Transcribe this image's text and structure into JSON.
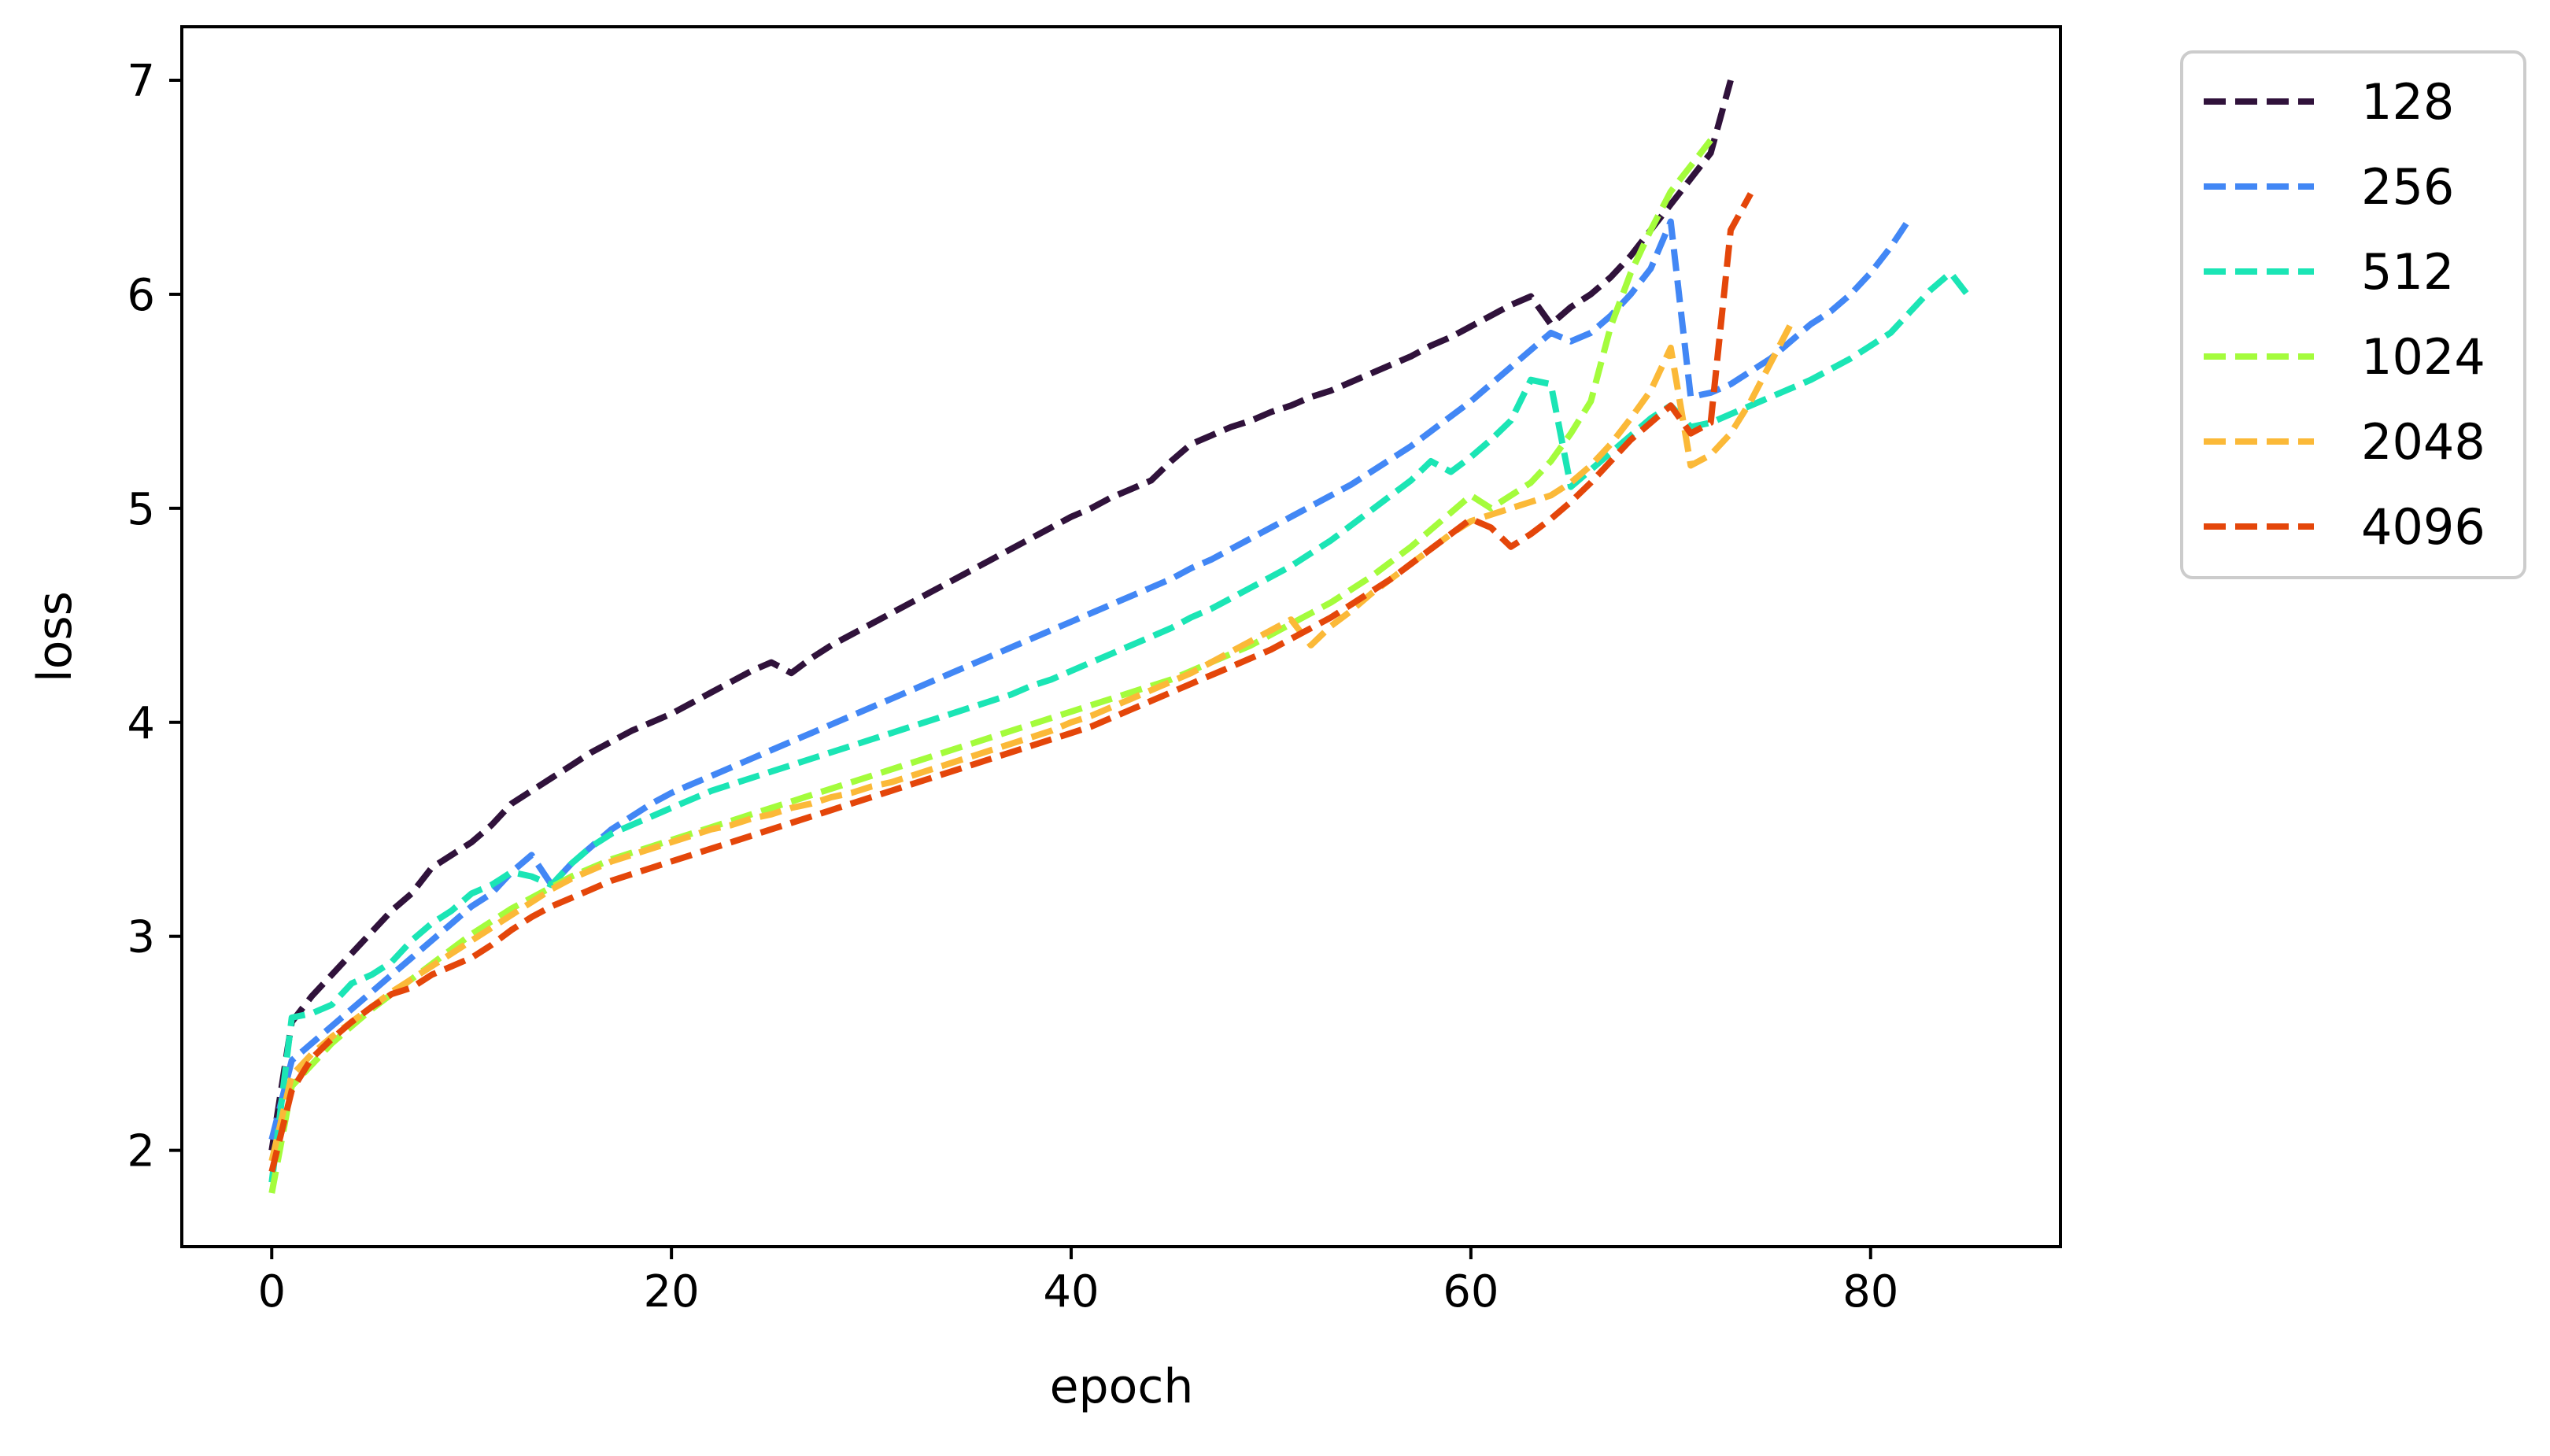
{
  "chart_data": {
    "type": "line",
    "title": "",
    "xlabel": "epoch",
    "ylabel": "loss",
    "xlim": [
      -4.5,
      89.5
    ],
    "ylim": [
      1.55,
      7.25
    ],
    "xticks": [
      0,
      20,
      40,
      60,
      80
    ],
    "yticks": [
      2,
      3,
      4,
      5,
      6,
      7
    ],
    "grid": false,
    "legend": "outside-right-top",
    "line_style": "dashed",
    "series": [
      {
        "name": "128",
        "color": "#30123b",
        "x": [
          0,
          1,
          2,
          3,
          4,
          5,
          6,
          7,
          8,
          9,
          10,
          11,
          12,
          13,
          14,
          15,
          16,
          17,
          18,
          19,
          20,
          21,
          22,
          23,
          24,
          25,
          26,
          27,
          28,
          29,
          30,
          31,
          32,
          33,
          34,
          35,
          36,
          37,
          38,
          39,
          40,
          41,
          42,
          43,
          44,
          45,
          46,
          47,
          48,
          49,
          50,
          51,
          52,
          53,
          54,
          55,
          56,
          57,
          58,
          59,
          60,
          61,
          62,
          63,
          64,
          65,
          66,
          67,
          68,
          69,
          70,
          71,
          72,
          73
        ],
        "y": [
          2.0,
          2.6,
          2.72,
          2.82,
          2.92,
          3.02,
          3.12,
          3.2,
          3.32,
          3.38,
          3.44,
          3.52,
          3.62,
          3.68,
          3.74,
          3.8,
          3.86,
          3.91,
          3.96,
          4.0,
          4.04,
          4.09,
          4.14,
          4.19,
          4.24,
          4.28,
          4.23,
          4.3,
          4.36,
          4.41,
          4.46,
          4.51,
          4.56,
          4.61,
          4.66,
          4.71,
          4.76,
          4.81,
          4.86,
          4.91,
          4.96,
          5.0,
          5.05,
          5.09,
          5.13,
          5.22,
          5.3,
          5.34,
          5.38,
          5.41,
          5.45,
          5.48,
          5.52,
          5.55,
          5.59,
          5.63,
          5.67,
          5.71,
          5.76,
          5.8,
          5.85,
          5.9,
          5.95,
          5.99,
          5.86,
          5.94,
          6.0,
          6.08,
          6.18,
          6.3,
          6.42,
          6.54,
          6.66,
          7.0
        ]
      },
      {
        "name": "256",
        "color": "#4287f5",
        "x": [
          0,
          1,
          2,
          3,
          4,
          5,
          6,
          7,
          8,
          9,
          10,
          11,
          12,
          13,
          14,
          15,
          16,
          17,
          18,
          19,
          20,
          21,
          22,
          23,
          24,
          25,
          26,
          27,
          28,
          29,
          30,
          31,
          32,
          33,
          34,
          35,
          36,
          37,
          38,
          39,
          40,
          41,
          42,
          43,
          44,
          45,
          46,
          47,
          48,
          49,
          50,
          51,
          52,
          53,
          54,
          55,
          56,
          57,
          58,
          59,
          60,
          61,
          62,
          63,
          64,
          65,
          66,
          67,
          68,
          69,
          70,
          71,
          72,
          73,
          74,
          75,
          76,
          77,
          78,
          79,
          80,
          81,
          82
        ],
        "y": [
          2.05,
          2.42,
          2.5,
          2.58,
          2.66,
          2.74,
          2.82,
          2.9,
          2.98,
          3.06,
          3.14,
          3.2,
          3.3,
          3.38,
          3.24,
          3.34,
          3.42,
          3.5,
          3.56,
          3.62,
          3.67,
          3.71,
          3.75,
          3.79,
          3.83,
          3.87,
          3.91,
          3.95,
          3.99,
          4.03,
          4.07,
          4.11,
          4.15,
          4.19,
          4.23,
          4.27,
          4.31,
          4.35,
          4.39,
          4.43,
          4.47,
          4.51,
          4.55,
          4.59,
          4.63,
          4.67,
          4.72,
          4.76,
          4.81,
          4.86,
          4.91,
          4.96,
          5.01,
          5.06,
          5.11,
          5.17,
          5.23,
          5.29,
          5.36,
          5.43,
          5.5,
          5.58,
          5.66,
          5.74,
          5.82,
          5.78,
          5.82,
          5.9,
          6.0,
          6.12,
          6.34,
          5.52,
          5.54,
          5.58,
          5.64,
          5.7,
          5.78,
          5.86,
          5.92,
          6.0,
          6.1,
          6.22,
          6.36
        ]
      },
      {
        "name": "512",
        "color": "#1be5b5",
        "x": [
          0,
          1,
          2,
          3,
          4,
          5,
          6,
          7,
          8,
          9,
          10,
          11,
          12,
          13,
          14,
          15,
          16,
          17,
          18,
          19,
          20,
          21,
          22,
          23,
          24,
          25,
          26,
          27,
          28,
          29,
          30,
          31,
          32,
          33,
          34,
          35,
          36,
          37,
          38,
          39,
          40,
          41,
          42,
          43,
          44,
          45,
          46,
          47,
          48,
          49,
          50,
          51,
          52,
          53,
          54,
          55,
          56,
          57,
          58,
          59,
          60,
          61,
          62,
          63,
          64,
          65,
          66,
          67,
          68,
          69,
          70,
          71,
          72,
          73,
          74,
          75,
          76,
          77,
          78,
          79,
          80,
          81,
          82,
          83,
          84,
          85
        ],
        "y": [
          1.85,
          2.62,
          2.64,
          2.68,
          2.78,
          2.82,
          2.88,
          2.98,
          3.06,
          3.12,
          3.2,
          3.24,
          3.3,
          3.28,
          3.24,
          3.34,
          3.42,
          3.48,
          3.52,
          3.56,
          3.6,
          3.64,
          3.68,
          3.71,
          3.74,
          3.77,
          3.8,
          3.83,
          3.86,
          3.89,
          3.92,
          3.95,
          3.98,
          4.01,
          4.04,
          4.07,
          4.1,
          4.13,
          4.17,
          4.2,
          4.24,
          4.28,
          4.32,
          4.36,
          4.4,
          4.44,
          4.49,
          4.53,
          4.58,
          4.63,
          4.68,
          4.73,
          4.79,
          4.85,
          4.92,
          4.99,
          5.06,
          5.13,
          5.22,
          5.17,
          5.24,
          5.32,
          5.41,
          5.6,
          5.58,
          5.1,
          5.18,
          5.26,
          5.34,
          5.42,
          5.48,
          5.38,
          5.4,
          5.44,
          5.48,
          5.52,
          5.56,
          5.6,
          5.65,
          5.7,
          5.76,
          5.82,
          5.92,
          6.02,
          6.1,
          5.98
        ]
      },
      {
        "name": "1024",
        "color": "#a4fc3c",
        "x": [
          0,
          1,
          2,
          3,
          4,
          5,
          6,
          7,
          8,
          9,
          10,
          11,
          12,
          13,
          14,
          15,
          16,
          17,
          18,
          19,
          20,
          21,
          22,
          23,
          24,
          25,
          26,
          27,
          28,
          29,
          30,
          31,
          32,
          33,
          34,
          35,
          36,
          37,
          38,
          39,
          40,
          41,
          42,
          43,
          44,
          45,
          46,
          47,
          48,
          49,
          50,
          51,
          52,
          53,
          54,
          55,
          56,
          57,
          58,
          59,
          60,
          61,
          62,
          63,
          64,
          65,
          66,
          67,
          68,
          69,
          70,
          71,
          72
        ],
        "y": [
          1.8,
          2.3,
          2.4,
          2.5,
          2.58,
          2.66,
          2.73,
          2.8,
          2.87,
          2.94,
          3.01,
          3.07,
          3.13,
          3.18,
          3.23,
          3.28,
          3.32,
          3.36,
          3.39,
          3.42,
          3.45,
          3.48,
          3.51,
          3.54,
          3.57,
          3.6,
          3.63,
          3.66,
          3.69,
          3.72,
          3.75,
          3.78,
          3.81,
          3.84,
          3.87,
          3.9,
          3.93,
          3.96,
          3.99,
          4.02,
          4.05,
          4.08,
          4.11,
          4.14,
          4.17,
          4.2,
          4.24,
          4.28,
          4.32,
          4.36,
          4.41,
          4.46,
          4.51,
          4.56,
          4.62,
          4.68,
          4.75,
          4.82,
          4.9,
          4.98,
          5.06,
          5.0,
          5.06,
          5.12,
          5.22,
          5.35,
          5.5,
          5.85,
          6.1,
          6.3,
          6.48,
          6.6,
          6.72
        ]
      },
      {
        "name": "2048",
        "color": "#fbb938",
        "x": [
          0,
          1,
          2,
          3,
          4,
          5,
          6,
          7,
          8,
          9,
          10,
          11,
          12,
          13,
          14,
          15,
          16,
          17,
          18,
          19,
          20,
          21,
          22,
          23,
          24,
          25,
          26,
          27,
          28,
          29,
          30,
          31,
          32,
          33,
          34,
          35,
          36,
          37,
          38,
          39,
          40,
          41,
          42,
          43,
          44,
          45,
          46,
          47,
          48,
          49,
          50,
          51,
          52,
          53,
          54,
          55,
          56,
          57,
          58,
          59,
          60,
          61,
          62,
          63,
          64,
          65,
          66,
          67,
          68,
          69,
          70,
          71,
          72,
          73,
          74,
          75,
          76
        ],
        "y": [
          1.95,
          2.35,
          2.45,
          2.53,
          2.6,
          2.67,
          2.74,
          2.8,
          2.86,
          2.92,
          2.98,
          3.04,
          3.1,
          3.16,
          3.22,
          3.27,
          3.31,
          3.35,
          3.38,
          3.41,
          3.44,
          3.47,
          3.5,
          3.52,
          3.55,
          3.57,
          3.6,
          3.62,
          3.65,
          3.67,
          3.7,
          3.72,
          3.75,
          3.78,
          3.81,
          3.84,
          3.87,
          3.9,
          3.93,
          3.96,
          4.0,
          4.03,
          4.07,
          4.11,
          4.15,
          4.19,
          4.23,
          4.28,
          4.33,
          4.38,
          4.43,
          4.48,
          4.36,
          4.45,
          4.52,
          4.6,
          4.67,
          4.74,
          4.81,
          4.88,
          4.94,
          4.97,
          5.0,
          5.03,
          5.06,
          5.12,
          5.2,
          5.3,
          5.42,
          5.55,
          5.75,
          5.2,
          5.25,
          5.35,
          5.5,
          5.68,
          5.86
        ]
      },
      {
        "name": "4096",
        "color": "#e4460a",
        "x": [
          0,
          1,
          2,
          3,
          4,
          5,
          6,
          7,
          8,
          9,
          10,
          11,
          12,
          13,
          14,
          15,
          16,
          17,
          18,
          19,
          20,
          21,
          22,
          23,
          24,
          25,
          26,
          27,
          28,
          29,
          30,
          31,
          32,
          33,
          34,
          35,
          36,
          37,
          38,
          39,
          40,
          41,
          42,
          43,
          44,
          45,
          46,
          47,
          48,
          49,
          50,
          51,
          52,
          53,
          54,
          55,
          56,
          57,
          58,
          59,
          60,
          61,
          62,
          63,
          64,
          65,
          66,
          67,
          68,
          69,
          70,
          71,
          72,
          73,
          74
        ],
        "y": [
          1.9,
          2.28,
          2.43,
          2.52,
          2.6,
          2.67,
          2.73,
          2.76,
          2.82,
          2.86,
          2.9,
          2.96,
          3.03,
          3.09,
          3.14,
          3.18,
          3.22,
          3.26,
          3.29,
          3.32,
          3.35,
          3.38,
          3.41,
          3.44,
          3.47,
          3.5,
          3.53,
          3.56,
          3.59,
          3.62,
          3.65,
          3.68,
          3.71,
          3.74,
          3.77,
          3.8,
          3.83,
          3.86,
          3.89,
          3.92,
          3.95,
          3.98,
          4.02,
          4.06,
          4.1,
          4.14,
          4.18,
          4.22,
          4.26,
          4.3,
          4.34,
          4.39,
          4.44,
          4.49,
          4.55,
          4.61,
          4.67,
          4.74,
          4.81,
          4.88,
          4.95,
          4.91,
          4.82,
          4.88,
          4.95,
          5.03,
          5.12,
          5.22,
          5.32,
          5.4,
          5.48,
          5.35,
          5.4,
          6.3,
          6.47
        ]
      }
    ]
  }
}
